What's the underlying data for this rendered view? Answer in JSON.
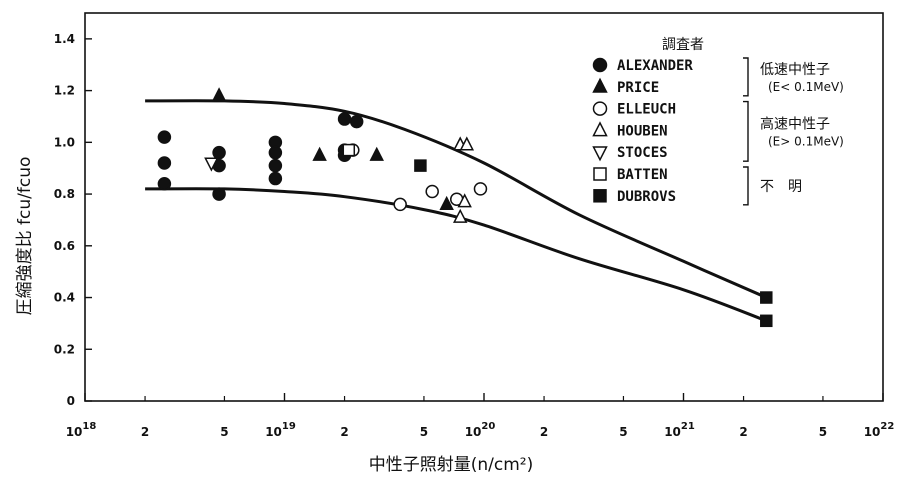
{
  "chart_data": {
    "type": "scatter",
    "xlabel": "中性子照射量(n/cm²)",
    "ylabel": "圧縮強度比 fcu/fcuo",
    "xscale": "log",
    "xlim": [
      1e+18,
      1e+22
    ],
    "ylim": [
      0,
      1.5
    ],
    "grid": false,
    "legend_placement": "top-right",
    "x_major_ticks": [
      {
        "value": 1e+18,
        "base": "10",
        "exp": "18"
      },
      {
        "value": 1e+19,
        "base": "10",
        "exp": "19"
      },
      {
        "value": 1e+20,
        "base": "10",
        "exp": "20"
      },
      {
        "value": 1e+21,
        "base": "10",
        "exp": "21"
      },
      {
        "value": 1e+22,
        "base": "10",
        "exp": "22"
      }
    ],
    "x_minor_ticks": [
      {
        "value": 2e+18,
        "label": "2"
      },
      {
        "value": 5e+18,
        "label": "5"
      },
      {
        "value": 2e+19,
        "label": "2"
      },
      {
        "value": 5e+19,
        "label": "5"
      },
      {
        "value": 2e+20,
        "label": "2"
      },
      {
        "value": 5e+20,
        "label": "5"
      },
      {
        "value": 2e+21,
        "label": "2"
      },
      {
        "value": 5e+21,
        "label": "5"
      }
    ],
    "y_ticks": [
      {
        "value": 0,
        "label": "0"
      },
      {
        "value": 0.2,
        "label": "0.2"
      },
      {
        "value": 0.4,
        "label": "0.4"
      },
      {
        "value": 0.6,
        "label": "0.6"
      },
      {
        "value": 0.8,
        "label": "0.8"
      },
      {
        "value": 1.0,
        "label": "1.0"
      },
      {
        "value": 1.2,
        "label": "1.2"
      },
      {
        "value": 1.4,
        "label": "1.4"
      }
    ],
    "legend_title": "調査者",
    "series": [
      {
        "name": "ALEXANDER",
        "marker": "circle-filled",
        "points": [
          [
            2.5e+18,
            1.02
          ],
          [
            2.5e+18,
            0.92
          ],
          [
            2.5e+18,
            0.84
          ],
          [
            4.7e+18,
            0.96
          ],
          [
            4.7e+18,
            0.91
          ],
          [
            4.7e+18,
            0.8
          ],
          [
            9e+18,
            1.0
          ],
          [
            9e+18,
            0.96
          ],
          [
            9e+18,
            0.91
          ],
          [
            9e+18,
            0.86
          ],
          [
            2e+19,
            1.09
          ],
          [
            2.3e+19,
            1.08
          ],
          [
            2e+19,
            0.97
          ],
          [
            2e+19,
            0.95
          ]
        ]
      },
      {
        "name": "PRICE",
        "marker": "triangle-up-filled",
        "points": [
          [
            4.7e+18,
            1.18
          ],
          [
            1.5e+19,
            0.95
          ],
          [
            2.9e+19,
            0.95
          ],
          [
            6.5e+19,
            0.76
          ]
        ]
      },
      {
        "name": "ELLEUCH",
        "marker": "circle-open",
        "points": [
          [
            2.2e+19,
            0.97
          ],
          [
            3.8e+19,
            0.76
          ],
          [
            5.5e+19,
            0.81
          ],
          [
            7.3e+19,
            0.78
          ],
          [
            9.6e+19,
            0.82
          ]
        ]
      },
      {
        "name": "HOUBEN",
        "marker": "triangle-up-open",
        "points": [
          [
            7.6e+19,
            0.99
          ],
          [
            8.2e+19,
            0.99
          ],
          [
            7.6e+19,
            0.71
          ],
          [
            8e+19,
            0.77
          ]
        ]
      },
      {
        "name": "STOCES",
        "marker": "triangle-down-open",
        "points": [
          [
            4.3e+18,
            0.92
          ]
        ]
      },
      {
        "name": "BATTEN",
        "marker": "square-open",
        "points": [
          [
            2.1e+19,
            0.97
          ]
        ]
      },
      {
        "name": "DUBROVS",
        "marker": "square-filled",
        "points": [
          [
            4.8e+19,
            0.91
          ],
          [
            2.6e+21,
            0.4
          ],
          [
            2.6e+21,
            0.31
          ]
        ]
      }
    ],
    "curves": [
      {
        "points": [
          [
            2e+18,
            1.16
          ],
          [
            5e+18,
            1.16
          ],
          [
            1e+19,
            1.15
          ],
          [
            2e+19,
            1.12
          ],
          [
            4e+19,
            1.05
          ],
          [
            1e+20,
            0.92
          ],
          [
            3e+20,
            0.72
          ],
          [
            1e+21,
            0.54
          ],
          [
            2.6e+21,
            0.4
          ]
        ]
      },
      {
        "points": [
          [
            2e+18,
            0.82
          ],
          [
            5e+18,
            0.82
          ],
          [
            1e+19,
            0.81
          ],
          [
            2e+19,
            0.79
          ],
          [
            5e+19,
            0.74
          ],
          [
            1e+20,
            0.68
          ],
          [
            3e+20,
            0.55
          ],
          [
            1e+21,
            0.43
          ],
          [
            2.6e+21,
            0.31
          ]
        ]
      }
    ],
    "legend_groups": [
      {
        "label": "低速中性子",
        "sub": "(E< 0.1MeV)",
        "series": [
          "ALEXANDER",
          "PRICE"
        ]
      },
      {
        "label": "高速中性子",
        "sub": "(E> 0.1MeV)",
        "series": [
          "ELLEUCH",
          "HOUBEN",
          "STOCES"
        ]
      },
      {
        "label": "不　明",
        "sub": "",
        "series": [
          "BATTEN",
          "DUBROVS"
        ]
      }
    ]
  }
}
